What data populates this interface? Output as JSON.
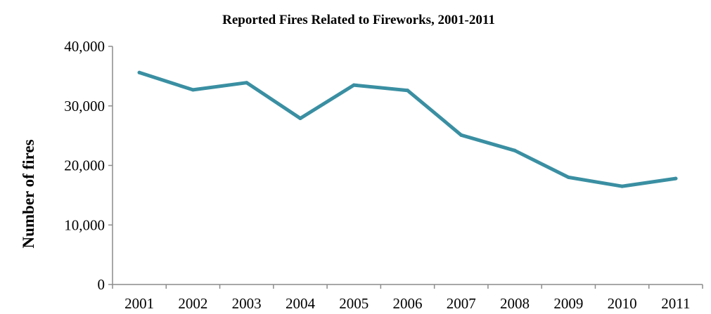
{
  "chart_data": {
    "type": "line",
    "title": "Reported Fires Related to Fireworks, 2001-2011",
    "xlabel": "",
    "ylabel": "Number of fires",
    "categories": [
      "2001",
      "2002",
      "2003",
      "2004",
      "2005",
      "2006",
      "2007",
      "2008",
      "2009",
      "2010",
      "2011"
    ],
    "series": [
      {
        "values": [
          35600,
          32700,
          33900,
          27900,
          33500,
          32600,
          25100,
          22500,
          18000,
          16500,
          17800
        ],
        "color": "#3a8fa2"
      }
    ],
    "ylim": [
      0,
      40000
    ],
    "y_ticks": [
      0,
      10000,
      20000,
      30000,
      40000
    ],
    "y_tick_labels": [
      "0",
      "10,000",
      "20,000",
      "30,000",
      "40,000"
    ],
    "grid": false,
    "legend": "none"
  }
}
